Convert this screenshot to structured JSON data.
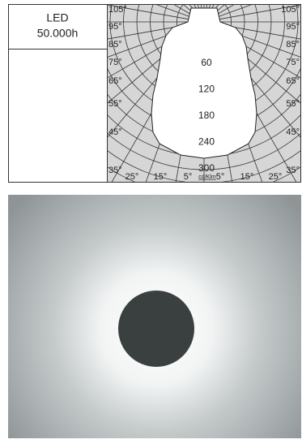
{
  "label_box": {
    "lines": [
      "LED",
      "50.000h"
    ]
  },
  "polar_diagram": {
    "angle_labels_left": [
      "105°",
      "95°",
      "85°",
      "75°",
      "65°",
      "55°",
      "45°",
      "35°"
    ],
    "angle_labels_right": [
      "105°",
      "95°",
      "85°",
      "75°",
      "65°",
      "55°",
      "45°",
      "35°"
    ],
    "angle_labels_bottom": [
      "25°",
      "15°",
      "5°",
      "5°",
      "15°",
      "25°"
    ],
    "intensity_labels": [
      "60",
      "120",
      "180",
      "240",
      "300"
    ],
    "unit": "cd/Klm"
  }
}
